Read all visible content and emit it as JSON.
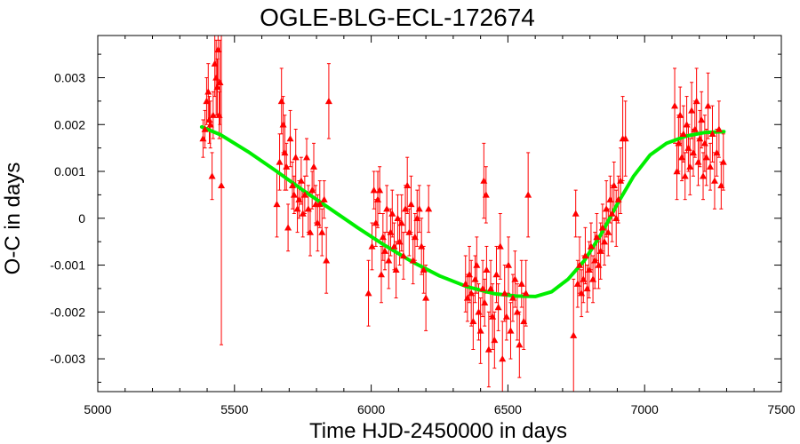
{
  "chart_data": {
    "type": "scatter",
    "title": "OGLE-BLG-ECL-172674",
    "xlabel": "Time HJD-2450000 in days",
    "ylabel": "O-C in days",
    "xlim": [
      5000,
      7500
    ],
    "ylim": [
      -0.0037,
      0.0039
    ],
    "xticks": [
      5000,
      5500,
      6000,
      6500,
      7000,
      7500
    ],
    "xtick_labels": [
      "5000",
      "5500",
      "6000",
      "6500",
      "7000",
      "7500"
    ],
    "yticks": [
      0.003,
      0.002,
      0.001,
      0,
      -0.001,
      -0.002,
      -0.003
    ],
    "ytick_labels": [
      "0.003",
      "0.002",
      "0.001",
      "0",
      "-0.001",
      "-0.002",
      "-0.003"
    ],
    "grid": false,
    "colors": {
      "points": "#ff0000",
      "fit": "#00ee00",
      "axes": "#000000"
    },
    "series": [
      {
        "kind": "observations",
        "marker": "triangle",
        "points": [
          [
            5385,
            0.0017,
            0.0004
          ],
          [
            5392,
            0.0019,
            0.0004
          ],
          [
            5398,
            0.0025,
            0.0005
          ],
          [
            5404,
            0.0027,
            0.0006
          ],
          [
            5408,
            0.0021,
            0.0005
          ],
          [
            5412,
            0.002,
            0.0005
          ],
          [
            5418,
            0.0009,
            0.0005
          ],
          [
            5422,
            0.0022,
            0.0005
          ],
          [
            5428,
            0.0033,
            0.0007
          ],
          [
            5433,
            0.003,
            0.0008
          ],
          [
            5437,
            0.0028,
            0.0006
          ],
          [
            5440,
            0.0036,
            0.0008
          ],
          [
            5444,
            0.0022,
            0.0005
          ],
          [
            5447,
            0.0029,
            0.0009
          ],
          [
            5452,
            0.0007,
            0.0034
          ],
          [
            5655,
            0.0003,
            0.0007
          ],
          [
            5665,
            0.0012,
            0.0006
          ],
          [
            5672,
            0.0025,
            0.0007
          ],
          [
            5678,
            0.002,
            0.0006
          ],
          [
            5684,
            0.0014,
            0.0008
          ],
          [
            5690,
            0.0011,
            0.0005
          ],
          [
            5696,
            -0.0002,
            0.0005
          ],
          [
            5704,
            0.0017,
            0.0006
          ],
          [
            5712,
            0.0007,
            0.0005
          ],
          [
            5718,
            0.0005,
            0.0004
          ],
          [
            5724,
            0.0013,
            0.0006
          ],
          [
            5730,
            0.0002,
            0.0005
          ],
          [
            5736,
            0.0004,
            0.0004
          ],
          [
            5744,
            0.0008,
            0.0005
          ],
          [
            5750,
            0.0001,
            0.0005
          ],
          [
            5757,
            0.0005,
            0.0004
          ],
          [
            5764,
            0.0013,
            0.0004
          ],
          [
            5770,
            0.0002,
            0.0005
          ],
          [
            5777,
            -0.0003,
            0.0005
          ],
          [
            5784,
            0.0006,
            0.0004
          ],
          [
            5790,
            0.0011,
            0.0005
          ],
          [
            5797,
            0.0003,
            0.0004
          ],
          [
            5804,
            -0.0001,
            0.0006
          ],
          [
            5812,
            0.0003,
            0.0005
          ],
          [
            5820,
            -0.0003,
            0.0005
          ],
          [
            5828,
            0.0004,
            0.0004
          ],
          [
            5836,
            -0.0009,
            0.0007
          ],
          [
            5845,
            0.0025,
            0.0008
          ],
          [
            5990,
            -0.0016,
            0.0007
          ],
          [
            6003,
            -0.0006,
            0.0005
          ],
          [
            6010,
            0.0006,
            0.0004
          ],
          [
            6017,
            -0.0001,
            0.0005
          ],
          [
            6024,
            0.0004,
            0.0006
          ],
          [
            6031,
            0.0006,
            0.0005
          ],
          [
            6037,
            -0.0012,
            0.0006
          ],
          [
            6043,
            -0.0004,
            0.0005
          ],
          [
            6050,
            -0.0007,
            0.0004
          ],
          [
            6057,
            0.0002,
            0.0005
          ],
          [
            6064,
            -0.0009,
            0.0006
          ],
          [
            6071,
            -0.0003,
            0.0005
          ],
          [
            6077,
            0.0001,
            0.0005
          ],
          [
            6084,
            -0.0006,
            0.0005
          ],
          [
            6091,
            -0.0011,
            0.0006
          ],
          [
            6097,
            0.0,
            0.0005
          ],
          [
            6104,
            -0.0005,
            0.0005
          ],
          [
            6111,
            -0.0001,
            0.0006
          ],
          [
            6118,
            -0.0008,
            0.0005
          ],
          [
            6125,
            0.0002,
            0.0005
          ],
          [
            6132,
            0.0007,
            0.0006
          ],
          [
            6139,
            -0.0003,
            0.0005
          ],
          [
            6146,
            0.0003,
            0.0006
          ],
          [
            6153,
            -0.0009,
            0.0005
          ],
          [
            6160,
            -0.0004,
            0.0005
          ],
          [
            6168,
            0.0,
            0.0006
          ],
          [
            6176,
            0.0002,
            0.0005
          ],
          [
            6184,
            -0.0006,
            0.0006
          ],
          [
            6192,
            -0.0011,
            0.0005
          ],
          [
            6200,
            -0.0017,
            0.0007
          ],
          [
            6210,
            0.0002,
            0.0005
          ],
          [
            6345,
            -0.0014,
            0.0006
          ],
          [
            6352,
            -0.0017,
            0.0005
          ],
          [
            6359,
            -0.0012,
            0.0006
          ],
          [
            6366,
            -0.0016,
            0.0007
          ],
          [
            6373,
            -0.0022,
            0.0006
          ],
          [
            6380,
            -0.0013,
            0.0005
          ],
          [
            6386,
            -0.001,
            0.0006
          ],
          [
            6393,
            -0.002,
            0.0006
          ],
          [
            6400,
            -0.0024,
            0.0007
          ],
          [
            6408,
            -0.0015,
            0.0006
          ],
          [
            6415,
            -0.0018,
            0.0005
          ],
          [
            6422,
            -0.0011,
            0.0005
          ],
          [
            6430,
            -0.0028,
            0.0008
          ],
          [
            6437,
            -0.0015,
            0.0006
          ],
          [
            6444,
            -0.0021,
            0.0007
          ],
          [
            6451,
            -0.0026,
            0.0006
          ],
          [
            6458,
            -0.0012,
            0.0006
          ],
          [
            6465,
            -0.0019,
            0.0005
          ],
          [
            6472,
            -0.0006,
            0.0007
          ],
          [
            6480,
            -0.003,
            0.0008
          ],
          [
            6488,
            -0.0016,
            0.0006
          ],
          [
            6495,
            -0.0021,
            0.0005
          ],
          [
            6502,
            -0.001,
            0.0006
          ],
          [
            6510,
            -0.0024,
            0.0006
          ],
          [
            6518,
            -0.0017,
            0.0005
          ],
          [
            6526,
            -0.0013,
            0.0006
          ],
          [
            6534,
            -0.002,
            0.0006
          ],
          [
            6542,
            -0.0027,
            0.0007
          ],
          [
            6550,
            -0.0014,
            0.0005
          ],
          [
            6558,
            -0.0022,
            0.0006
          ],
          [
            6566,
            -0.0016,
            0.0007
          ],
          [
            6574,
            0.0005,
            0.0009
          ],
          [
            6412,
            0.0008,
            0.0008
          ],
          [
            6420,
            0.0005,
            0.0006
          ],
          [
            6740,
            -0.0025,
            0.0012
          ],
          [
            6748,
            0.0001,
            0.0005
          ],
          [
            6755,
            -0.0014,
            0.0005
          ],
          [
            6762,
            -0.001,
            0.0006
          ],
          [
            6769,
            -0.0016,
            0.0005
          ],
          [
            6776,
            -0.0013,
            0.0005
          ],
          [
            6783,
            -0.0008,
            0.0006
          ],
          [
            6790,
            -0.0015,
            0.0005
          ],
          [
            6797,
            -0.0011,
            0.0006
          ],
          [
            6804,
            -0.0006,
            0.0005
          ],
          [
            6811,
            -0.0013,
            0.0005
          ],
          [
            6818,
            -0.0009,
            0.0006
          ],
          [
            6825,
            -0.0004,
            0.0005
          ],
          [
            6832,
            -0.001,
            0.0005
          ],
          [
            6839,
            -0.0007,
            0.0006
          ],
          [
            6846,
            -0.0002,
            0.0005
          ],
          [
            6853,
            -0.0005,
            0.0005
          ],
          [
            6860,
            0.0002,
            0.0006
          ],
          [
            6867,
            -0.0003,
            0.0005
          ],
          [
            6874,
            0.0004,
            0.0005
          ],
          [
            6881,
            0.0001,
            0.0006
          ],
          [
            6888,
            0.0007,
            0.0005
          ],
          [
            6896,
            0.0,
            0.0006
          ],
          [
            6904,
            0.0004,
            0.0005
          ],
          [
            6912,
            0.0008,
            0.0007
          ],
          [
            6920,
            0.0017,
            0.0009
          ],
          [
            6930,
            0.0017,
            0.0008
          ],
          [
            7110,
            0.0024,
            0.0008
          ],
          [
            7118,
            0.001,
            0.0006
          ],
          [
            7124,
            0.0016,
            0.0006
          ],
          [
            7130,
            0.0022,
            0.0006
          ],
          [
            7136,
            0.0013,
            0.0005
          ],
          [
            7142,
            0.0018,
            0.0006
          ],
          [
            7148,
            0.0009,
            0.0005
          ],
          [
            7154,
            0.002,
            0.0006
          ],
          [
            7160,
            0.0015,
            0.0005
          ],
          [
            7166,
            0.0011,
            0.0006
          ],
          [
            7172,
            0.0023,
            0.0006
          ],
          [
            7178,
            0.0014,
            0.0005
          ],
          [
            7184,
            0.0019,
            0.0006
          ],
          [
            7190,
            0.0025,
            0.0007
          ],
          [
            7196,
            0.0012,
            0.0005
          ],
          [
            7202,
            0.0017,
            0.0006
          ],
          [
            7208,
            0.0021,
            0.0006
          ],
          [
            7214,
            0.0009,
            0.0005
          ],
          [
            7220,
            0.0016,
            0.0006
          ],
          [
            7226,
            0.0013,
            0.0006
          ],
          [
            7232,
            0.0024,
            0.0007
          ],
          [
            7240,
            0.0011,
            0.0005
          ],
          [
            7248,
            0.0018,
            0.0006
          ],
          [
            7256,
            0.0008,
            0.0006
          ],
          [
            7264,
            0.0014,
            0.0005
          ],
          [
            7272,
            0.0019,
            0.0006
          ],
          [
            7280,
            0.0007,
            0.0005
          ],
          [
            7288,
            0.0012,
            0.0006
          ]
        ]
      },
      {
        "kind": "fit",
        "points": [
          [
            5380,
            0.00195
          ],
          [
            5450,
            0.00178
          ],
          [
            5550,
            0.00142
          ],
          [
            5650,
            0.00102
          ],
          [
            5750,
            0.0006
          ],
          [
            5850,
            0.0002
          ],
          [
            5950,
            -0.0002
          ],
          [
            6050,
            -0.00058
          ],
          [
            6150,
            -0.00093
          ],
          [
            6250,
            -0.00123
          ],
          [
            6350,
            -0.00146
          ],
          [
            6450,
            -0.00161
          ],
          [
            6530,
            -0.00166
          ],
          [
            6600,
            -0.00167
          ],
          [
            6660,
            -0.00157
          ],
          [
            6720,
            -0.0013
          ],
          [
            6780,
            -0.0009
          ],
          [
            6840,
            -0.00035
          ],
          [
            6900,
            0.0003
          ],
          [
            6960,
            0.0009
          ],
          [
            7020,
            0.00135
          ],
          [
            7080,
            0.0016
          ],
          [
            7150,
            0.00175
          ],
          [
            7220,
            0.00183
          ],
          [
            7290,
            0.00185
          ]
        ]
      }
    ]
  }
}
